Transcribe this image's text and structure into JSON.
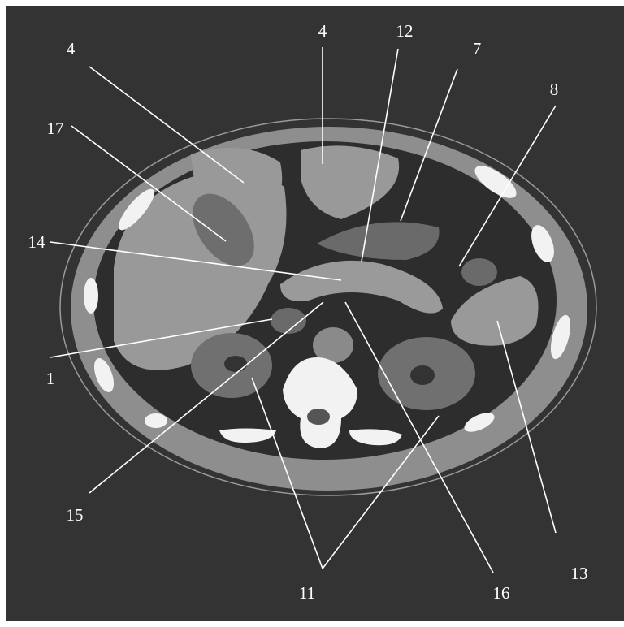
{
  "labels": [
    "4",
    "4",
    "12",
    "7",
    "8",
    "17",
    "14",
    "1",
    "15",
    "11",
    "16",
    "13"
  ]
}
